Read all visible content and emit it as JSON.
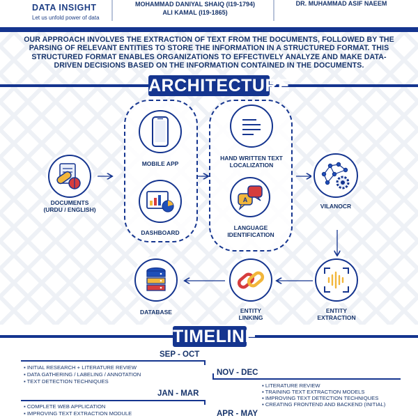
{
  "header": {
    "brand_name": "DATA INSIGHT",
    "brand_tagline": "Let us unfold power of data",
    "students": [
      "MOHAMMAD DANIYAL SHAIQ (I19-1794)",
      "ALI KAMAL (I19-1865)"
    ],
    "supervisor": "DR. MUHAMMAD ASIF NAEEM"
  },
  "intro_text": "OUR APPROACH INVOLVES THE EXTRACTION OF TEXT FROM THE DOCUMENTS, FOLLOWED BY THE PARSING OF RELEVANT ENTITIES TO STORE THE INFORMATION IN A STRUCTURED FORMAT. THIS STRUCTURED FORMAT ENABLES ORGANIZATIONS TO EFFECTIVELY ANALYZE AND MAKE DATA-DRIVEN DECISIONS BASED ON THE INFORMATION CONTAINED IN THE DOCUMENTS.",
  "architecture": {
    "title": "ARCHITECTURE",
    "nodes": {
      "documents": [
        "DOCUMENTS",
        "(URDU / ENGLISH)"
      ],
      "mobile_app": "MOBILE APP",
      "dashboard": "DASHBOARD",
      "handwritten": [
        "HAND WRITTEN TEXT",
        "LOCALIZATION"
      ],
      "language": [
        "LANGUAGE",
        "IDENTIFICATION"
      ],
      "vilanocr": "VILANOCR",
      "entity_extraction": [
        "ENTITY",
        "EXTRACTION"
      ],
      "entity_linking": [
        "ENTITY",
        "LINKING"
      ],
      "database": "DATABASE"
    },
    "icons": {
      "documents": "pill-documents-icon",
      "mobile_app": "smartphone-icon",
      "dashboard": "dashboard-chart-icon",
      "handwritten": "text-lines-icon",
      "language": "translate-icon",
      "vilanocr": "brain-gear-icon",
      "entity_extraction": "scan-waveform-icon",
      "entity_linking": "chain-link-icon",
      "database": "database-icon"
    }
  },
  "timeline": {
    "title": "TIMELINE",
    "periods": [
      {
        "label": "SEP - OCT",
        "items": [
          "INITIAL RESEARCH + LITERATURE REVIEW",
          "DATA GATHERING / LABELING / ANNOTATION",
          "TEXT DETECTION TECHNIQUES"
        ]
      },
      {
        "label": "NOV - DEC",
        "items": [
          "LITERATURE REVIEW",
          "TRAINING TEXT EXTRACTION MODELS",
          "IMPROVING TEXT DETECTION TECHNIQUES",
          "CREATING FRONTEND AND BACKEND (INITIAL)"
        ]
      },
      {
        "label": "JAN - MAR",
        "items": [
          "COMPLETE WEB APPLICATION",
          "IMPROVING TEXT EXTRACTION MODULE"
        ]
      },
      {
        "label": "APR - MAY",
        "items": []
      }
    ]
  },
  "colors": {
    "primary": "#15358f",
    "text": "#17346b",
    "accent_red": "#d63d3d",
    "accent_yellow": "#f2b63a"
  }
}
